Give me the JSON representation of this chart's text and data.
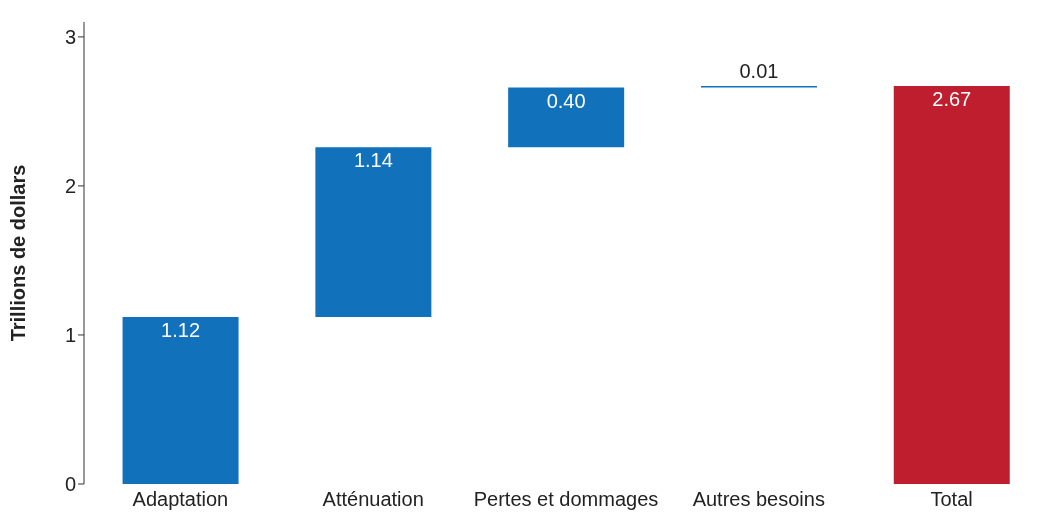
{
  "chart_data": {
    "type": "bar",
    "ylabel": "Trillions de dollars",
    "categories": [
      "Adaptation",
      "Atténuation",
      "Pertes et dommages",
      "Autres besoins",
      "Total"
    ],
    "values": [
      1.12,
      1.14,
      0.4,
      0.01,
      2.67
    ],
    "base": [
      0,
      1.12,
      2.26,
      2.66,
      0
    ],
    "colors": [
      "#1172bb",
      "#1172bb",
      "#1172bb",
      "#1172bb",
      "#be1e2d"
    ],
    "ylim": [
      0,
      3.1
    ],
    "yticks": [
      0,
      1,
      2,
      3
    ],
    "value_labels": [
      "1.12",
      "1.14",
      "0.40",
      "0.01",
      "2.67"
    ],
    "grid": false,
    "legend": false
  }
}
